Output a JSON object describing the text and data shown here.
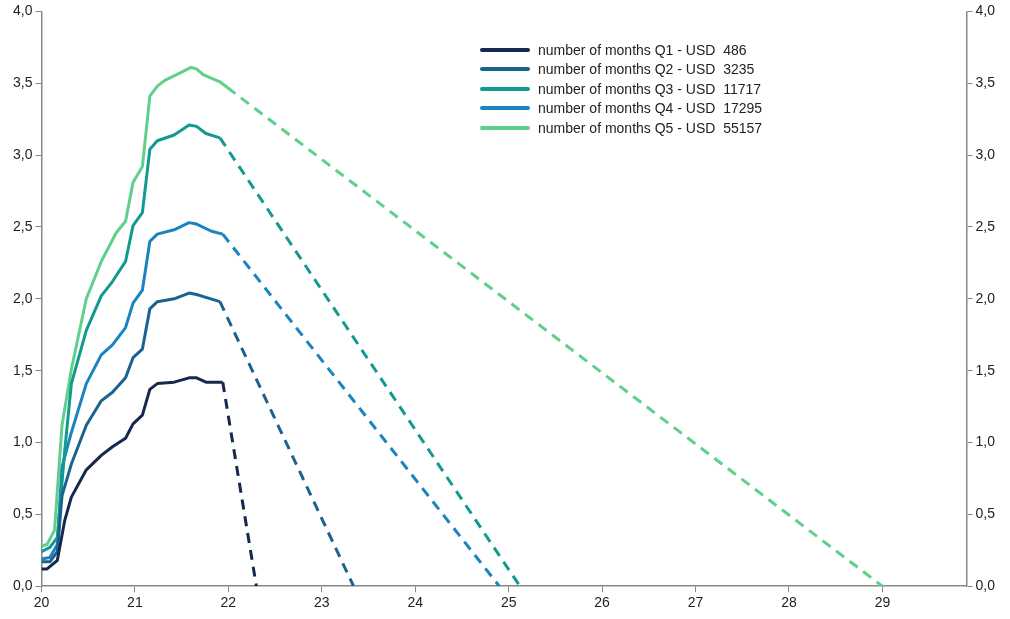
{
  "chart_data": {
    "type": "line",
    "xlim": [
      20,
      29.9
    ],
    "xticks": [
      20,
      21,
      22,
      23,
      24,
      25,
      26,
      27,
      28,
      29
    ],
    "ylim": [
      0,
      4
    ],
    "yticks": [
      {
        "value": 0,
        "label": "0,0"
      },
      {
        "value": 0.5,
        "label": "0,5"
      },
      {
        "value": 1,
        "label": "1,0"
      },
      {
        "value": 1.5,
        "label": "1,5"
      },
      {
        "value": 2,
        "label": "2,0"
      },
      {
        "value": 2.5,
        "label": "2,5"
      },
      {
        "value": 3,
        "label": "3,0"
      },
      {
        "value": 3.5,
        "label": "3,5"
      },
      {
        "value": 4,
        "label": "4,0"
      }
    ],
    "y2lim": [
      0,
      4
    ],
    "y2ticks": [
      {
        "value": 0,
        "label": "0,0"
      },
      {
        "value": 0.5,
        "label": "0,5"
      },
      {
        "value": 1,
        "label": "1,0"
      },
      {
        "value": 1.5,
        "label": "1,5"
      },
      {
        "value": 2,
        "label": "2,0"
      },
      {
        "value": 2.5,
        "label": "2,5"
      },
      {
        "value": 3,
        "label": "3,0"
      },
      {
        "value": 3.5,
        "label": "3,5"
      },
      {
        "value": 4,
        "label": "4,0"
      }
    ],
    "grid": false,
    "legend": "top right",
    "marker": "none",
    "line_style": "solid",
    "series": [
      {
        "name": "number of months Q1 - USD  486",
        "color": "#15294f",
        "x": [
          20.0,
          20.06,
          20.17,
          20.25,
          20.32,
          20.48,
          20.64,
          20.76,
          20.9,
          20.98,
          21.08,
          21.16,
          21.24,
          21.42,
          21.58,
          21.66,
          21.76,
          21.94
        ],
        "values": [
          0.12,
          0.12,
          0.18,
          0.46,
          0.62,
          0.81,
          0.91,
          0.97,
          1.03,
          1.13,
          1.19,
          1.37,
          1.41,
          1.42,
          1.45,
          1.45,
          1.42,
          1.42
        ]
      },
      {
        "name": "number of months Q2 - USD  3235",
        "color": "#1a6391",
        "x": [
          20.0,
          20.09,
          20.17,
          20.22,
          20.32,
          20.48,
          20.64,
          20.76,
          20.9,
          20.98,
          21.08,
          21.16,
          21.24,
          21.42,
          21.58,
          21.66,
          21.76,
          21.91
        ],
        "values": [
          0.17,
          0.17,
          0.24,
          0.63,
          0.85,
          1.12,
          1.29,
          1.35,
          1.45,
          1.59,
          1.65,
          1.93,
          1.98,
          2.0,
          2.04,
          2.03,
          2.01,
          1.98
        ]
      },
      {
        "name": "number of months Q3 - USD  11717",
        "color": "#139a8e",
        "x": [
          20.0,
          20.09,
          20.17,
          20.25,
          20.32,
          20.48,
          20.64,
          20.76,
          20.9,
          20.98,
          21.08,
          21.16,
          21.24,
          21.42,
          21.58,
          21.66,
          21.76,
          21.91
        ],
        "values": [
          0.24,
          0.27,
          0.34,
          0.95,
          1.41,
          1.78,
          2.02,
          2.12,
          2.26,
          2.51,
          2.6,
          3.04,
          3.1,
          3.14,
          3.21,
          3.2,
          3.15,
          3.12
        ]
      },
      {
        "name": "number of months Q4 - USD  17295",
        "color": "#1a84c0",
        "x": [
          20.0,
          20.09,
          20.17,
          20.22,
          20.32,
          20.48,
          20.64,
          20.76,
          20.9,
          20.98,
          21.08,
          21.16,
          21.24,
          21.42,
          21.58,
          21.66,
          21.82,
          21.94
        ],
        "values": [
          0.19,
          0.2,
          0.29,
          0.83,
          1.07,
          1.41,
          1.61,
          1.68,
          1.8,
          1.97,
          2.06,
          2.4,
          2.45,
          2.48,
          2.53,
          2.52,
          2.47,
          2.45
        ]
      },
      {
        "name": "number of months Q5 - USD  55157",
        "color": "#5fcf8c",
        "x": [
          20.0,
          20.06,
          20.14,
          20.22,
          20.32,
          20.48,
          20.64,
          20.8,
          20.9,
          20.98,
          21.08,
          21.16,
          21.24,
          21.32,
          21.48,
          21.6,
          21.66,
          21.73,
          21.91,
          21.99
        ],
        "values": [
          0.28,
          0.29,
          0.39,
          1.12,
          1.51,
          2.0,
          2.26,
          2.46,
          2.54,
          2.81,
          2.92,
          3.41,
          3.48,
          3.52,
          3.57,
          3.61,
          3.6,
          3.56,
          3.51,
          3.47
        ]
      },
      {
        "color": "#15294f",
        "line_style": "dashed",
        "x": [
          21.94,
          22.3
        ],
        "values": [
          1.42,
          0
        ]
      },
      {
        "color": "#1a6391",
        "line_style": "dashed",
        "x": [
          21.91,
          23.34
        ],
        "values": [
          1.98,
          0
        ]
      },
      {
        "color": "#139a8e",
        "line_style": "dashed",
        "x": [
          21.91,
          25.12
        ],
        "values": [
          3.12,
          0
        ]
      },
      {
        "color": "#1a84c0",
        "line_style": "dashed",
        "x": [
          21.94,
          24.9
        ],
        "values": [
          2.45,
          0
        ]
      },
      {
        "color": "#5fcf8c",
        "line_style": "dashed",
        "x": [
          21.99,
          29.0
        ],
        "values": [
          3.47,
          0
        ]
      }
    ]
  }
}
